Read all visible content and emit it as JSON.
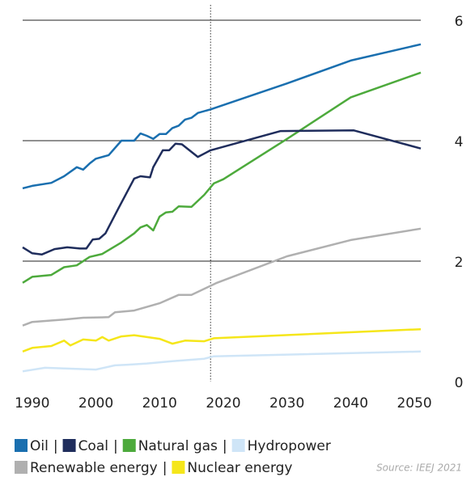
{
  "chart_data": {
    "type": "line",
    "xlim": [
      1988.5,
      2051
    ],
    "xticks": [
      1990,
      2000,
      2010,
      2020,
      2030,
      2040,
      2050
    ],
    "ylim": [
      0,
      6
    ],
    "yticks": [
      0,
      2,
      4,
      6
    ],
    "grid": true,
    "y_axis_side": "right",
    "vline": 2018,
    "legend_separator": "|",
    "source": "Source: IEEJ 2021",
    "series": [
      {
        "name": "Oil",
        "color": "#1a6faf",
        "x": [
          1988.5,
          1990,
          1993,
          1995,
          1997,
          1998,
          1999,
          2000,
          2002,
          2004,
          2006,
          2007,
          2008,
          2009,
          2010,
          2011,
          2012,
          2013,
          2014,
          2015,
          2016,
          2018,
          2030,
          2040,
          2051
        ],
        "values": [
          3.21,
          3.25,
          3.3,
          3.41,
          3.56,
          3.52,
          3.62,
          3.7,
          3.76,
          4.0,
          4.0,
          4.12,
          4.08,
          4.03,
          4.11,
          4.11,
          4.21,
          4.25,
          4.35,
          4.38,
          4.46,
          4.52,
          4.95,
          5.33,
          5.6
        ]
      },
      {
        "name": "Coal",
        "color": "#1f2d5c",
        "x": [
          1988.5,
          1990,
          1991.5,
          1993.5,
          1995.5,
          1997.5,
          1998.5,
          1999.5,
          2000.5,
          2001.5,
          2003.5,
          2006,
          2007,
          2008.5,
          2009,
          2010.5,
          2011.5,
          2012.5,
          2013.5,
          2016,
          2018,
          2029,
          2040.5,
          2051
        ],
        "values": [
          2.23,
          2.13,
          2.11,
          2.2,
          2.23,
          2.21,
          2.21,
          2.36,
          2.37,
          2.46,
          2.87,
          3.37,
          3.41,
          3.39,
          3.56,
          3.84,
          3.84,
          3.95,
          3.94,
          3.73,
          3.84,
          4.16,
          4.17,
          3.87
        ]
      },
      {
        "name": "Natural gas",
        "color": "#4daa3c",
        "x": [
          1988.5,
          1990,
          1993,
          1995,
          1997,
          1999,
          2001,
          2004,
          2006,
          2007,
          2008,
          2009,
          2010,
          2011,
          2012,
          2013,
          2015,
          2017,
          2018.5,
          2020,
          2030,
          2040,
          2051
        ],
        "values": [
          1.64,
          1.74,
          1.77,
          1.9,
          1.93,
          2.07,
          2.12,
          2.31,
          2.46,
          2.56,
          2.6,
          2.51,
          2.74,
          2.81,
          2.82,
          2.91,
          2.9,
          3.1,
          3.29,
          3.36,
          4.03,
          4.72,
          5.13
        ]
      },
      {
        "name": "Hydropower",
        "color": "#cfe5f7",
        "x": [
          1988.5,
          1992,
          2000,
          2003,
          2005,
          2008,
          2012,
          2017,
          2018.5,
          2051
        ],
        "values": [
          0.17,
          0.23,
          0.2,
          0.27,
          0.28,
          0.3,
          0.34,
          0.38,
          0.42,
          0.5
        ]
      },
      {
        "name": "Renewable energy",
        "color": "#b0b0b0",
        "x": [
          1988.5,
          1990,
          1995,
          1998,
          2002,
          2003,
          2006,
          2010,
          2013,
          2015,
          2019,
          2030,
          2040,
          2051
        ],
        "values": [
          0.93,
          0.99,
          1.03,
          1.06,
          1.07,
          1.15,
          1.18,
          1.3,
          1.44,
          1.44,
          1.64,
          2.08,
          2.35,
          2.54
        ]
      },
      {
        "name": "Nuclear energy",
        "color": "#f5e61a",
        "x": [
          1988.5,
          1990,
          1993,
          1995,
          1996,
          1998,
          2000,
          2001,
          2002,
          2004,
          2006,
          2010,
          2012,
          2014,
          2017,
          2018.5,
          2051
        ],
        "values": [
          0.5,
          0.56,
          0.59,
          0.68,
          0.6,
          0.7,
          0.68,
          0.74,
          0.68,
          0.75,
          0.77,
          0.71,
          0.63,
          0.68,
          0.67,
          0.72,
          0.87
        ]
      }
    ]
  }
}
